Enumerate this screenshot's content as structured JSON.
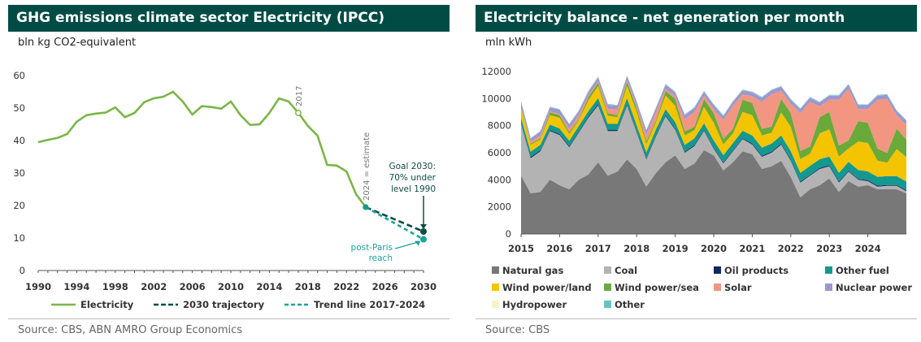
{
  "charts": [
    {
      "title": "GHG emissions climate sector Electricity (IPCC)",
      "unit": "bln kg CO2-equivalent",
      "source": "Source: CBS, ABN AMRO Group Economics"
    },
    {
      "title": "Electricity balance - net generation per month",
      "unit": "mln kWh",
      "source": "Source: CBS"
    }
  ],
  "chart_data": [
    {
      "type": "line",
      "title": "GHG emissions climate sector Electricity (IPCC)",
      "ylabel": "bln kg CO2-equivalent",
      "xlim": [
        1990,
        2030
      ],
      "ylim": [
        0,
        60
      ],
      "x_ticks": [
        1990,
        1994,
        1998,
        2002,
        2006,
        2010,
        2014,
        2018,
        2022,
        2026,
        2030
      ],
      "y_ticks": [
        0,
        10,
        20,
        30,
        40,
        50,
        60
      ],
      "series": [
        {
          "name": "Electricity",
          "color": "#7ab648",
          "style": "solid",
          "x": [
            1990,
            1991,
            1992,
            1993,
            1994,
            1995,
            1996,
            1997,
            1998,
            1999,
            2000,
            2001,
            2002,
            2003,
            2004,
            2005,
            2006,
            2007,
            2008,
            2009,
            2010,
            2011,
            2012,
            2013,
            2014,
            2015,
            2016,
            2017,
            2018,
            2019,
            2020,
            2021,
            2022,
            2023,
            2024
          ],
          "y": [
            39.5,
            40.2,
            40.8,
            42.0,
            45.8,
            47.8,
            48.3,
            48.6,
            50.2,
            47.2,
            48.5,
            51.8,
            53.0,
            53.5,
            55.0,
            52.0,
            48.0,
            50.6,
            50.3,
            49.8,
            52.0,
            47.8,
            44.8,
            45.0,
            48.5,
            53.0,
            52.0,
            48.5,
            44.5,
            41.5,
            32.5,
            32.3,
            30.5,
            23.5,
            19.5
          ]
        },
        {
          "name": "2030 trajectory",
          "color": "#0f4c45",
          "style": "dashed",
          "x": [
            2024,
            2030
          ],
          "y": [
            19.5,
            12.0
          ]
        },
        {
          "name": "Trend line 2017-2024",
          "color": "#1aa39a",
          "style": "dashed",
          "x": [
            2024,
            2030
          ],
          "y": [
            19.5,
            9.6
          ]
        }
      ],
      "annotations": [
        {
          "text": "2017",
          "x": 2017,
          "y": 48.5
        },
        {
          "text": "2024 = estimate",
          "x": 2024,
          "y": 19.5
        },
        {
          "text_lines": [
            "Goal 2030:",
            "70% under",
            "level 1990"
          ],
          "x": 2030,
          "y": 12.0
        },
        {
          "text_lines": [
            "post-Paris",
            "reach"
          ],
          "x": 2030,
          "y": 9.6
        }
      ],
      "legend_position": "bottom",
      "grid": false
    },
    {
      "type": "area",
      "stacked": true,
      "title": "Electricity balance - net generation per month",
      "ylabel": "mln kWh",
      "ylim": [
        0,
        12000
      ],
      "y_ticks": [
        0,
        2000,
        4000,
        6000,
        8000,
        10000,
        12000
      ],
      "x_ticks": [
        "2015",
        "2016",
        "2017",
        "2018",
        "2019",
        "2020",
        "2021",
        "2022",
        "2023",
        "2024"
      ],
      "x_start_year": 2015,
      "months_per_point": 3,
      "legend_position": "bottom",
      "grid": false,
      "series": [
        {
          "name": "Natural gas",
          "color": "#787878",
          "values": [
            4300,
            3000,
            3100,
            4000,
            3600,
            3300,
            4000,
            4400,
            5300,
            4300,
            4600,
            5500,
            4800,
            3500,
            4500,
            5300,
            5800,
            4800,
            5200,
            6200,
            5800,
            4700,
            5300,
            6100,
            5900,
            4800,
            5000,
            5400,
            4200,
            2700,
            3300,
            3600,
            4100,
            3100,
            3900,
            3500,
            3600,
            3300,
            3300,
            3300,
            3000
          ]
        },
        {
          "name": "Coal",
          "color": "#b3b3b3",
          "values": [
            3800,
            2600,
            3000,
            3600,
            3700,
            3100,
            3500,
            4200,
            4200,
            3300,
            3000,
            4000,
            2700,
            2000,
            2700,
            3400,
            1900,
            1200,
            1300,
            1400,
            500,
            500,
            800,
            900,
            700,
            900,
            1000,
            1200,
            1200,
            1100,
            1000,
            1200,
            900,
            700,
            700,
            500,
            300,
            200,
            250,
            250,
            150
          ]
        },
        {
          "name": "Oil products",
          "color": "#0a2a5e",
          "values": [
            80,
            80,
            80,
            80,
            80,
            80,
            80,
            80,
            80,
            80,
            80,
            80,
            80,
            80,
            80,
            80,
            70,
            70,
            70,
            70,
            70,
            70,
            70,
            70,
            70,
            70,
            70,
            70,
            70,
            70,
            70,
            70,
            70,
            70,
            70,
            70,
            70,
            70,
            70,
            70,
            70
          ]
        },
        {
          "name": "Other fuel",
          "color": "#14988f",
          "values": [
            400,
            400,
            400,
            400,
            400,
            400,
            400,
            400,
            450,
            450,
            450,
            450,
            450,
            450,
            450,
            450,
            500,
            500,
            500,
            500,
            550,
            550,
            550,
            550,
            600,
            600,
            600,
            600,
            650,
            650,
            650,
            650,
            650,
            650,
            650,
            650,
            650,
            650,
            650,
            650,
            650
          ]
        },
        {
          "name": "Wind power/land",
          "color": "#f5c400",
          "values": [
            700,
            500,
            400,
            700,
            800,
            500,
            400,
            800,
            900,
            600,
            500,
            900,
            1000,
            600,
            500,
            1000,
            1200,
            700,
            600,
            1200,
            1300,
            800,
            700,
            1400,
            1500,
            900,
            800,
            1700,
            1800,
            1000,
            900,
            1900,
            2000,
            1200,
            1000,
            2100,
            2100,
            1200,
            1000,
            2000,
            1800
          ]
        },
        {
          "name": "Wind power/sea",
          "color": "#6aaa3a",
          "values": [
            150,
            100,
            80,
            200,
            200,
            150,
            100,
            250,
            250,
            180,
            150,
            300,
            300,
            200,
            150,
            350,
            500,
            300,
            250,
            600,
            700,
            400,
            350,
            900,
            900,
            500,
            450,
            1000,
            1000,
            600,
            550,
            1200,
            1300,
            800,
            600,
            1500,
            1500,
            900,
            700,
            1500,
            1300
          ]
        },
        {
          "name": "Solar",
          "color": "#f29682",
          "values": [
            50,
            150,
            200,
            80,
            80,
            250,
            300,
            100,
            100,
            350,
            400,
            120,
            130,
            500,
            600,
            150,
            200,
            900,
            1100,
            250,
            300,
            1400,
            1700,
            400,
            500,
            2000,
            2400,
            600,
            700,
            2800,
            3300,
            800,
            900,
            3400,
            3800,
            900,
            1000,
            3600,
            4000,
            1000,
            1100
          ]
        },
        {
          "name": "Nuclear power",
          "color": "#9b97cf",
          "values": [
            300,
            200,
            300,
            300,
            300,
            300,
            300,
            300,
            300,
            300,
            300,
            300,
            300,
            300,
            300,
            300,
            300,
            300,
            300,
            300,
            300,
            300,
            300,
            300,
            300,
            300,
            300,
            300,
            300,
            300,
            300,
            300,
            300,
            300,
            300,
            300,
            300,
            300,
            300,
            300,
            300
          ]
        },
        {
          "name": "Hydropower",
          "color": "#fbf1c7",
          "values": [
            10,
            10,
            10,
            10,
            10,
            10,
            10,
            10,
            10,
            10,
            10,
            10,
            10,
            10,
            10,
            10,
            10,
            10,
            10,
            10,
            10,
            10,
            10,
            10,
            10,
            10,
            10,
            10,
            10,
            10,
            10,
            10,
            10,
            10,
            10,
            10,
            10,
            10,
            10,
            10,
            10
          ]
        },
        {
          "name": "Other",
          "color": "#5ec8c0",
          "values": [
            40,
            40,
            40,
            40,
            40,
            40,
            40,
            40,
            40,
            40,
            40,
            40,
            40,
            40,
            40,
            40,
            40,
            40,
            40,
            40,
            40,
            40,
            40,
            40,
            40,
            40,
            40,
            40,
            40,
            40,
            40,
            40,
            40,
            40,
            40,
            40,
            40,
            40,
            40,
            40,
            40
          ]
        }
      ]
    }
  ]
}
